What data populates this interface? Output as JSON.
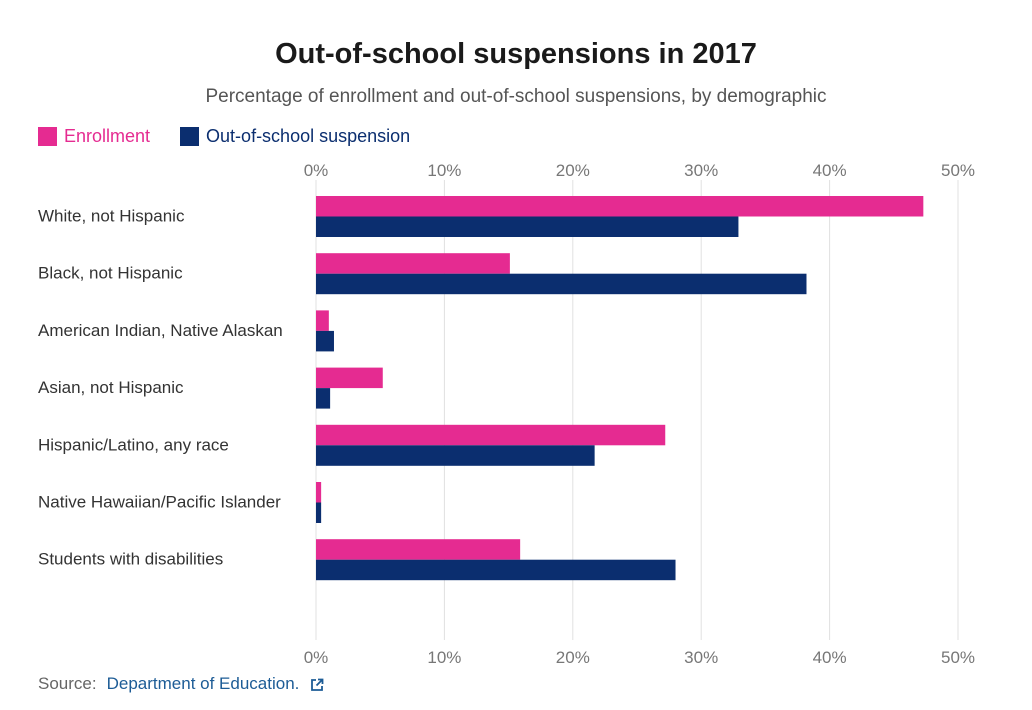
{
  "title": "Out-of-school suspensions in 2017",
  "subtitle": "Percentage of enrollment and out-of-school suspensions, by demographic",
  "legend": {
    "enrollment_label": "Enrollment",
    "suspension_label": "Out-of-school suspension"
  },
  "source": {
    "label": "Source:",
    "link_text": "Department of Education.",
    "icon": "external-link-icon"
  },
  "colors": {
    "enrollment": "#e52b91",
    "suspension": "#0b2e6f",
    "grid": "#e0e0e0"
  },
  "chart_data": {
    "type": "bar",
    "orientation": "horizontal",
    "title": "Out-of-school suspensions in 2017",
    "subtitle": "Percentage of enrollment and out-of-school suspensions, by demographic",
    "categories": [
      "White, not Hispanic",
      "Black, not Hispanic",
      "American Indian, Native Alaskan",
      "Asian, not Hispanic",
      "Hispanic/Latino, any race",
      "Native Hawaiian/Pacific Islander",
      "Students with disabilities"
    ],
    "series": [
      {
        "name": "Enrollment",
        "values": [
          47.3,
          15.1,
          1.0,
          5.2,
          27.2,
          0.4,
          15.9
        ]
      },
      {
        "name": "Out-of-school suspension",
        "values": [
          32.9,
          38.2,
          1.4,
          1.1,
          21.7,
          0.4,
          28.0
        ]
      }
    ],
    "xlim": [
      0,
      50
    ],
    "xticks": [
      "0%",
      "10%",
      "20%",
      "30%",
      "40%",
      "50%"
    ],
    "xtick_values": [
      0,
      10,
      20,
      30,
      40,
      50
    ],
    "grid": true,
    "legend_position": "top-left"
  }
}
